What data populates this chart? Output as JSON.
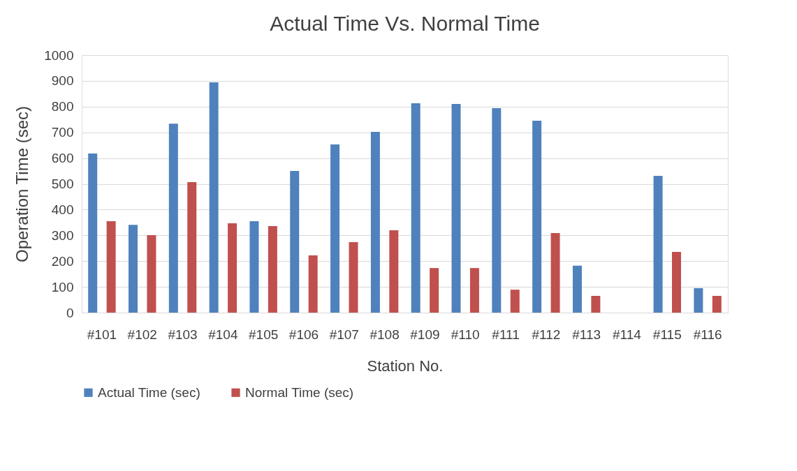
{
  "chart_data": {
    "type": "bar",
    "title": "Actual Time Vs. Normal Time",
    "xlabel": "Station No.",
    "ylabel": "Operation Time (sec)",
    "categories": [
      "#101",
      "#102",
      "#103",
      "#104",
      "#105",
      "#106",
      "#107",
      "#108",
      "#109",
      "#110",
      "#111",
      "#112",
      "#113",
      "#114",
      "#115",
      "#116"
    ],
    "series": [
      {
        "name": "Actual Time (sec)",
        "color": "#4f81bd",
        "values": [
          618,
          341,
          734,
          894,
          355,
          550,
          653,
          702,
          813,
          810,
          794,
          745,
          182,
          null,
          531,
          95
        ]
      },
      {
        "name": "Normal Time (sec)",
        "color": "#c0504d",
        "values": [
          355,
          301,
          507,
          347,
          336,
          222,
          274,
          320,
          173,
          173,
          89,
          309,
          65,
          null,
          236,
          65
        ]
      }
    ],
    "ylim": [
      0,
      1000
    ],
    "yticks": [
      0,
      100,
      200,
      300,
      400,
      500,
      600,
      700,
      800,
      900,
      1000
    ],
    "grid": "y",
    "legend": "bottom"
  }
}
